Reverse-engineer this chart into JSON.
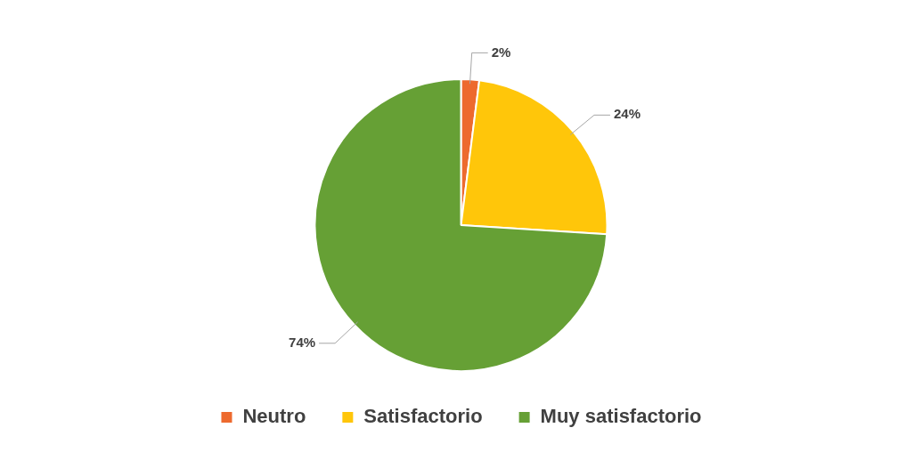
{
  "chart_data": {
    "type": "pie",
    "categories": [
      "Neutro",
      "Satisfactorio",
      "Muy satisfactorio"
    ],
    "values": [
      2,
      24,
      74
    ],
    "colors": [
      "#ed6a2e",
      "#ffc60a",
      "#66a035"
    ],
    "value_labels": [
      "2%",
      "24%",
      "74%"
    ],
    "legend": "bottom"
  }
}
